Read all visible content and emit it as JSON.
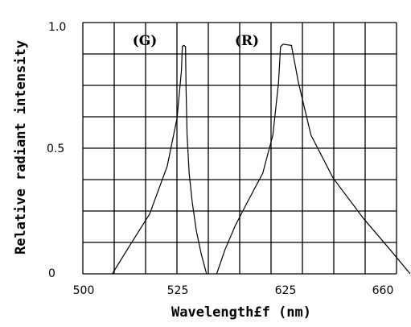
{
  "chart_data": {
    "type": "line",
    "ylabel": "Relative radiant intensity",
    "xlabel": "Wavelength£f (nm)",
    "x_ticks": [
      "500",
      "525",
      "625",
      "660"
    ],
    "y_ticks": [
      "0",
      "0.5",
      "1.0"
    ],
    "ylim": [
      0,
      1.0
    ],
    "grid": true,
    "annotations": [
      "(G)",
      "(R)"
    ],
    "series": [
      {
        "name": "(G)",
        "points": [
          [
            507.5,
            0
          ],
          [
            512,
            0.12
          ],
          [
            517,
            0.25
          ],
          [
            521.5,
            0.45
          ],
          [
            524,
            0.65
          ],
          [
            525.5,
            0.85
          ],
          [
            526.3,
            0.95
          ],
          [
            527.5,
            0.955
          ],
          [
            529.5,
            0.95
          ],
          [
            530,
            0.78
          ],
          [
            531,
            0.58
          ],
          [
            533,
            0.42
          ],
          [
            536,
            0.3
          ],
          [
            540,
            0.18
          ],
          [
            545,
            0.08
          ],
          [
            550,
            0
          ]
        ]
      },
      {
        "name": "(R)",
        "points": [
          [
            560,
            0
          ],
          [
            568,
            0.1
          ],
          [
            578,
            0.2
          ],
          [
            590,
            0.3
          ],
          [
            605,
            0.42
          ],
          [
            615,
            0.58
          ],
          [
            620.5,
            0.8
          ],
          [
            622.5,
            0.95
          ],
          [
            625,
            0.96
          ],
          [
            628,
            0.955
          ],
          [
            630.5,
            0.8
          ],
          [
            635,
            0.58
          ],
          [
            643,
            0.4
          ],
          [
            654,
            0.23
          ],
          [
            664,
            0.1
          ],
          [
            672,
            0
          ]
        ]
      }
    ]
  }
}
